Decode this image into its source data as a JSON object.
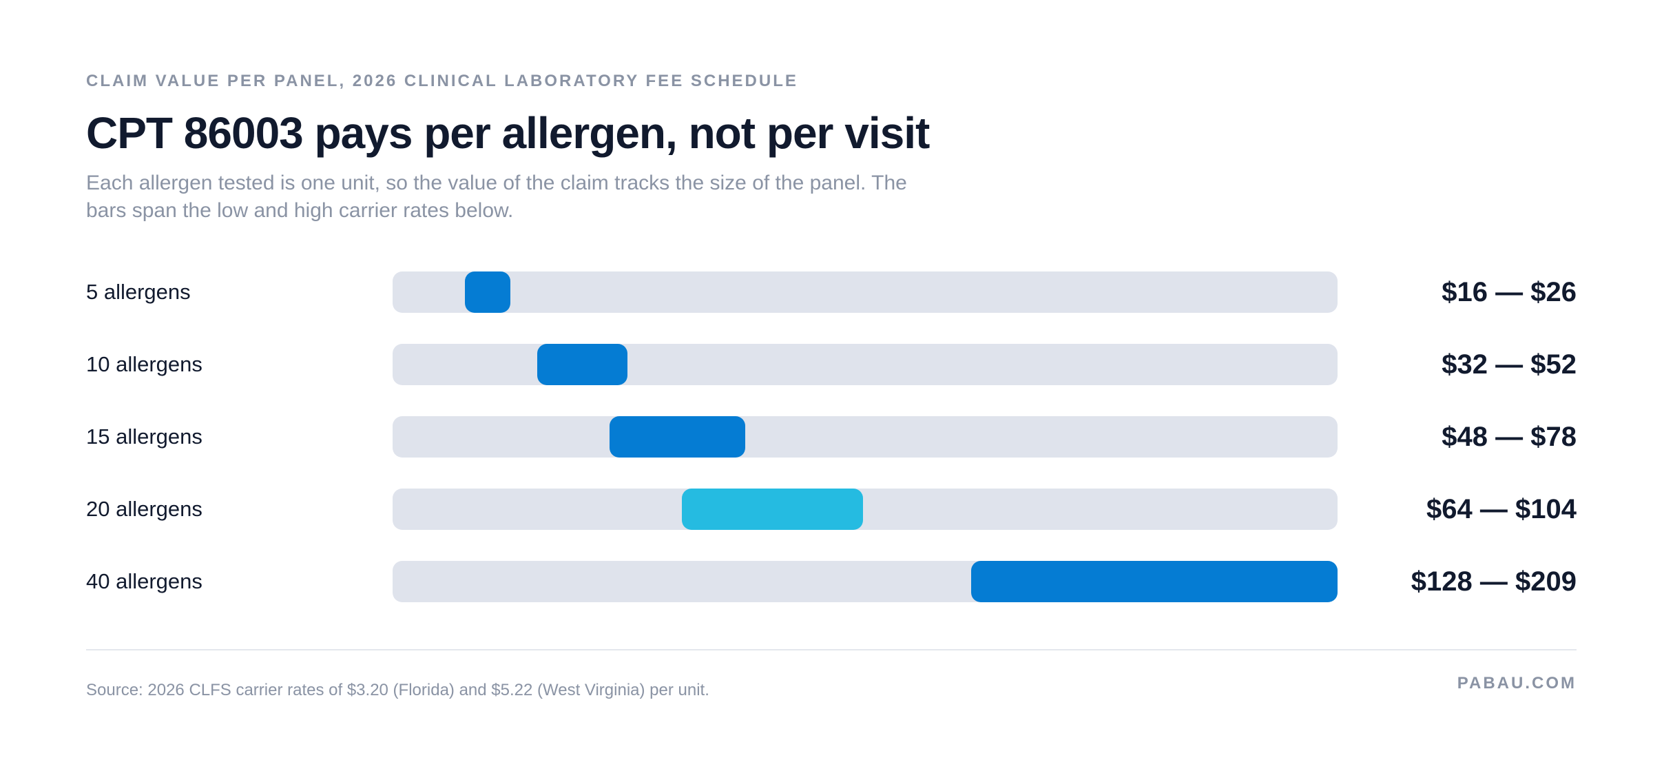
{
  "header": {
    "eyebrow": "CLAIM VALUE PER PANEL, 2026 CLINICAL LABORATORY FEE SCHEDULE",
    "title": "CPT 86003 pays per allergen, not per visit",
    "subtitle": "Each allergen tested is one unit, so the value of the claim tracks the size of the panel. The bars span the low and high carrier rates below."
  },
  "chart_data": {
    "type": "bar",
    "orientation": "horizontal-range",
    "xlim": [
      0,
      209
    ],
    "grid": false,
    "categories": [
      "5 allergens",
      "10 allergens",
      "15 allergens",
      "20 allergens",
      "40 allergens"
    ],
    "low": [
      16,
      32,
      48,
      64,
      128
    ],
    "high": [
      26,
      52,
      78,
      104,
      209
    ],
    "value_labels": [
      "$16 — $26",
      "$32 — $52",
      "$48 — $78",
      "$64 — $104",
      "$128 — $209"
    ],
    "bar_colors": [
      "#057cd3",
      "#057cd3",
      "#057cd3",
      "#25bbe1",
      "#057cd3"
    ],
    "track_color": "#dfe3ec"
  },
  "footer": {
    "source": "Source: 2026 CLFS carrier rates of $3.20 (Florida) and $5.22 (West Virginia) per unit.",
    "brand": "PABAU.COM"
  }
}
